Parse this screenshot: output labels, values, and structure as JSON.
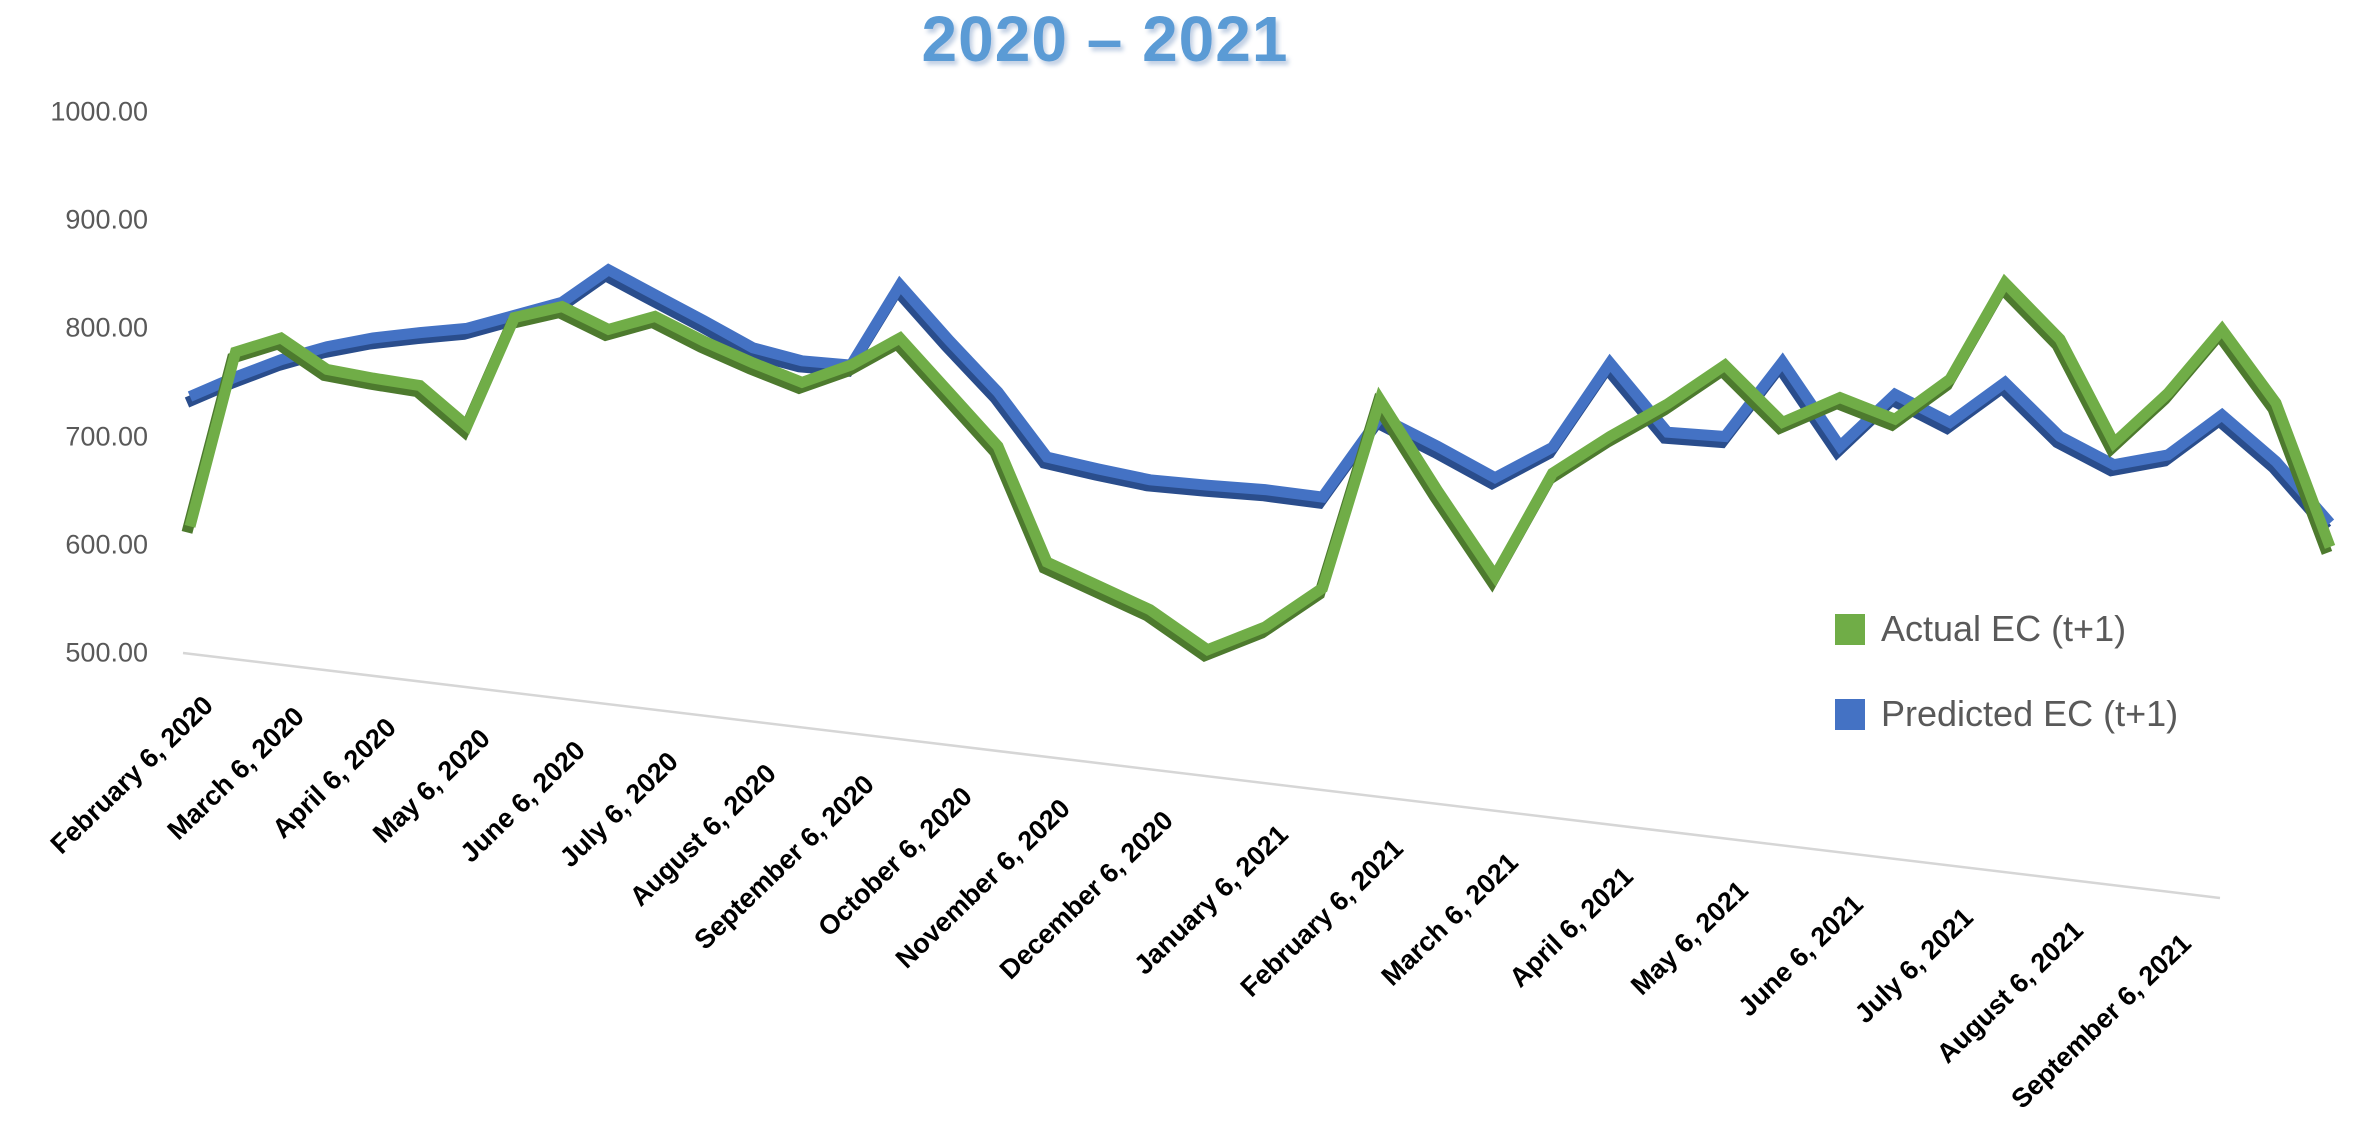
{
  "title": "2020 – 2021",
  "legend": [
    {
      "label": "Actual EC (t+1)",
      "color": "#70AD47"
    },
    {
      "label": "Predicted EC (t+1)",
      "color": "#4472C4"
    }
  ],
  "y_axis": {
    "tick_labels": [
      "1000.00",
      "900.00",
      "800.00",
      "700.00",
      "600.00",
      "500.00"
    ],
    "tick_values": [
      1000,
      900,
      800,
      700,
      600,
      500
    ]
  },
  "chart_data": {
    "type": "line",
    "title": "2020 – 2021",
    "xlabel": "",
    "ylabel": "",
    "ylim": [
      500,
      1000
    ],
    "grid": false,
    "legend_position": "right-middle",
    "x_labels": [
      "February 6, 2020",
      "March 6, 2020",
      "April 6, 2020",
      "May 6, 2020",
      "June 6, 2020",
      "July 6, 2020",
      "August 6, 2020",
      "September 6, 2020",
      "October 6, 2020",
      "November 6, 2020",
      "December 6, 2020",
      "January 6, 2021",
      "February 6, 2021",
      "March 6, 2021",
      "April 6, 2021",
      "May 6, 2021",
      "June 6, 2021",
      "July 6, 2021",
      "August 6, 2021",
      "September 6, 2021"
    ],
    "points_per_label_interval": 2,
    "unlabeled_trailing_points": 3,
    "series": [
      {
        "name": "Actual EC (t+1)",
        "color": "#70AD47",
        "values": [
          617,
          778,
          791,
          762,
          754,
          747,
          710,
          810,
          820,
          799,
          811,
          788,
          768,
          750,
          766,
          791,
          741,
          691,
          584,
          562,
          540,
          503,
          524,
          560,
          734,
          650,
          571,
          666,
          700,
          730,
          766,
          713,
          736,
          716,
          753,
          842,
          790,
          694,
          740,
          799,
          731,
          598
        ]
      },
      {
        "name": "Predicted EC (t+1)",
        "color": "#4472C4",
        "values": [
          737,
          755,
          771,
          783,
          791,
          796,
          800,
          812,
          824,
          854,
          831,
          807,
          782,
          770,
          766,
          840,
          789,
          741,
          681,
          670,
          660,
          655,
          651,
          644,
          718,
          691,
          662,
          690,
          768,
          704,
          700,
          769,
          691,
          739,
          713,
          750,
          700,
          674,
          683,
          720,
          677,
          620
        ]
      }
    ]
  }
}
